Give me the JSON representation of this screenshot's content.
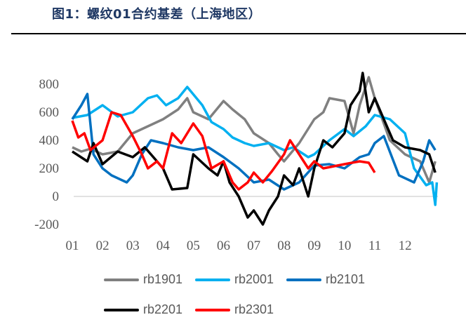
{
  "title": "图1：螺纹01合约基差（上海地区）",
  "chart_data": {
    "type": "line",
    "title": "图1：螺纹01合约基差（上海地区）",
    "xlabel": "",
    "ylabel": "",
    "ylim": [
      -200,
      900
    ],
    "yticks": [
      800,
      600,
      400,
      200,
      0,
      -200
    ],
    "ytick_labels": [
      "800",
      "600",
      "400",
      "200",
      "0",
      "-200"
    ],
    "xlim": [
      1,
      13.05
    ],
    "xticks": [
      1,
      2,
      3,
      4,
      5,
      6,
      7,
      8,
      9,
      10,
      11,
      12
    ],
    "xtick_labels": [
      "01",
      "02",
      "03",
      "04",
      "05",
      "06",
      "07",
      "08",
      "09",
      "10",
      "11",
      "12"
    ],
    "grid": false,
    "legend": "bottom",
    "series": [
      {
        "name": "rb1901",
        "color": "#808080",
        "x": [
          1,
          1.3,
          1.6,
          2,
          2.5,
          3,
          3.5,
          4,
          4.5,
          4.8,
          5,
          5.5,
          6,
          6.3,
          6.7,
          7,
          7.5,
          7.8,
          8,
          8.5,
          9,
          9.3,
          9.5,
          10,
          10.3,
          10.5,
          10.8,
          11,
          11.5,
          12,
          12.5,
          12.8,
          13
        ],
        "y": [
          350,
          320,
          340,
          300,
          320,
          450,
          500,
          550,
          620,
          700,
          600,
          550,
          680,
          620,
          550,
          450,
          380,
          300,
          250,
          380,
          550,
          600,
          700,
          680,
          450,
          650,
          850,
          700,
          400,
          300,
          250,
          100,
          250
        ]
      },
      {
        "name": "rb2001",
        "color": "#00B0F0",
        "x": [
          1,
          1.5,
          2,
          2.5,
          3,
          3.5,
          3.8,
          4.1,
          4.5,
          4.8,
          5.3,
          5.6,
          6,
          6.3,
          6.7,
          7,
          7.5,
          8,
          8.3,
          8.8,
          9,
          9.5,
          10,
          10.3,
          10.7,
          11,
          11.5,
          12,
          12.3,
          12.7,
          12.9,
          13,
          13.05
        ],
        "y": [
          560,
          580,
          650,
          570,
          600,
          700,
          720,
          650,
          700,
          780,
          650,
          530,
          480,
          420,
          380,
          360,
          380,
          330,
          350,
          280,
          300,
          400,
          480,
          430,
          500,
          580,
          550,
          450,
          200,
          80,
          100,
          -60,
          100
        ]
      },
      {
        "name": "rb2101",
        "color": "#0070C0",
        "x": [
          1,
          1.3,
          1.5,
          1.7,
          2,
          2.3,
          2.8,
          3,
          3.3,
          3.6,
          4,
          4.5,
          5,
          5.5,
          6,
          6.5,
          7,
          7.5,
          8,
          8.5,
          9,
          9.5,
          10,
          10.5,
          10.8,
          11,
          11.3,
          11.8,
          12.3,
          12.6,
          12.8,
          13
        ],
        "y": [
          550,
          650,
          730,
          300,
          200,
          150,
          100,
          150,
          300,
          400,
          380,
          350,
          330,
          350,
          280,
          200,
          100,
          120,
          50,
          100,
          220,
          230,
          200,
          280,
          300,
          380,
          430,
          150,
          100,
          250,
          400,
          330
        ]
      },
      {
        "name": "rb2201",
        "color": "#000000",
        "x": [
          1,
          1.5,
          1.7,
          2,
          2.5,
          3,
          3.4,
          3.8,
          4,
          4.3,
          4.8,
          5,
          5.5,
          5.8,
          6,
          6.2,
          6.5,
          6.8,
          7,
          7.3,
          7.5,
          7.8,
          8,
          8.3,
          8.5,
          8.8,
          9,
          9.3,
          9.6,
          10,
          10.2,
          10.5,
          10.6,
          10.8,
          11,
          11.3,
          11.6,
          12,
          12.5,
          12.8,
          13
        ],
        "y": [
          320,
          250,
          380,
          230,
          320,
          280,
          350,
          250,
          200,
          50,
          60,
          300,
          200,
          150,
          250,
          100,
          0,
          -150,
          -100,
          -200,
          -100,
          0,
          150,
          80,
          200,
          0,
          200,
          400,
          350,
          450,
          650,
          750,
          880,
          600,
          700,
          550,
          400,
          350,
          330,
          300,
          170
        ]
      },
      {
        "name": "rb2301",
        "color": "#FF0000",
        "x": [
          1,
          1.2,
          1.4,
          1.6,
          2,
          2.3,
          2.6,
          3,
          3.3,
          3.5,
          3.8,
          4,
          4.3,
          4.6,
          5,
          5.3,
          5.6,
          6,
          6.3,
          6.5,
          6.8,
          7,
          7.3,
          7.6,
          8,
          8.2,
          8.5,
          8.8,
          9,
          9.3,
          10,
          10.5,
          10.8,
          11
        ],
        "y": [
          540,
          420,
          450,
          330,
          400,
          600,
          580,
          430,
          300,
          200,
          250,
          200,
          450,
          380,
          520,
          430,
          200,
          250,
          100,
          50,
          100,
          170,
          100,
          180,
          300,
          400,
          300,
          200,
          250,
          200,
          230,
          250,
          240,
          170
        ]
      }
    ]
  }
}
